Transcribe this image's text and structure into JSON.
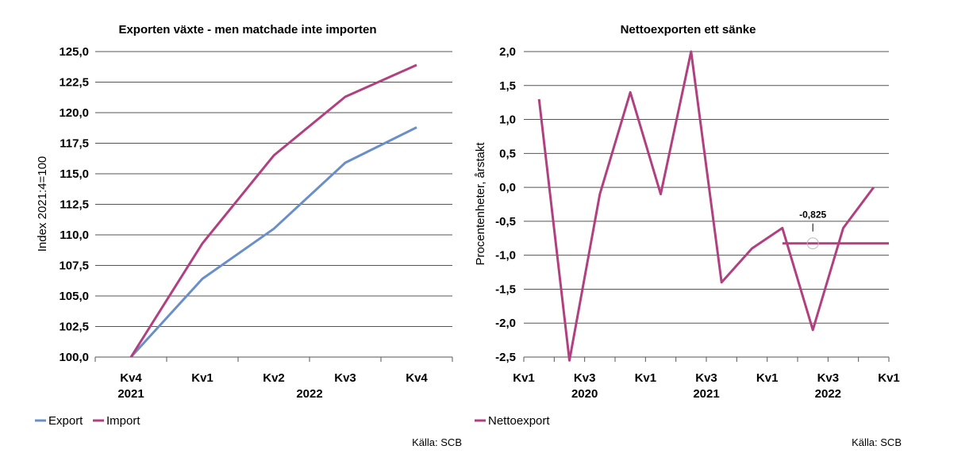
{
  "colors": {
    "export": "#6a8fc8",
    "import": "#b0407f",
    "nettoexport": "#b0407f",
    "grid": "#555555"
  },
  "chart_data": [
    {
      "type": "line",
      "title": "Exporten växte - men matchade inte importen",
      "ylabel": "Index 2021:4=100",
      "ylim": [
        100,
        125
      ],
      "yticks": [
        "100,0",
        "102,5",
        "105,0",
        "107,5",
        "110,0",
        "112,5",
        "115,0",
        "117,5",
        "120,0",
        "122,5",
        "125,0"
      ],
      "categories": [
        "Kv4",
        "Kv1",
        "Kv2",
        "Kv3",
        "Kv4"
      ],
      "year_labels": [
        "2021",
        "2022"
      ],
      "series": [
        {
          "name": "Export",
          "values": [
            100.0,
            106.4,
            110.5,
            115.9,
            118.8
          ]
        },
        {
          "name": "Import",
          "values": [
            100.0,
            109.3,
            116.5,
            121.3,
            123.9
          ]
        }
      ],
      "grid": true,
      "legend": "bottom-left",
      "source": "Källa: SCB"
    },
    {
      "type": "line",
      "title": "Nettoexporten ett sänke",
      "ylabel": "Procentenheter, årstakt",
      "ylim": [
        -2.5,
        2.0
      ],
      "yticks": [
        "-2,5",
        "-2,0",
        "-1,5",
        "-1,0",
        "-0,5",
        "0,0",
        "0,5",
        "1,0",
        "1,5",
        "2,0"
      ],
      "x_tick_labels": [
        "Kv1",
        "Kv3",
        "Kv1",
        "Kv3",
        "Kv1",
        "Kv3",
        "Kv1"
      ],
      "year_labels": [
        "2020",
        "2021",
        "2022"
      ],
      "series": [
        {
          "name": "Nettoexport",
          "values": [
            1.3,
            -2.55,
            -0.1,
            1.4,
            -0.1,
            2.0,
            -1.4,
            -0.9,
            -0.6,
            -2.1,
            -0.6,
            0.0
          ]
        }
      ],
      "average_line": {
        "value": -0.825,
        "label": "-0,825"
      },
      "grid": true,
      "legend": "bottom-left",
      "source": "Källa: SCB"
    }
  ]
}
